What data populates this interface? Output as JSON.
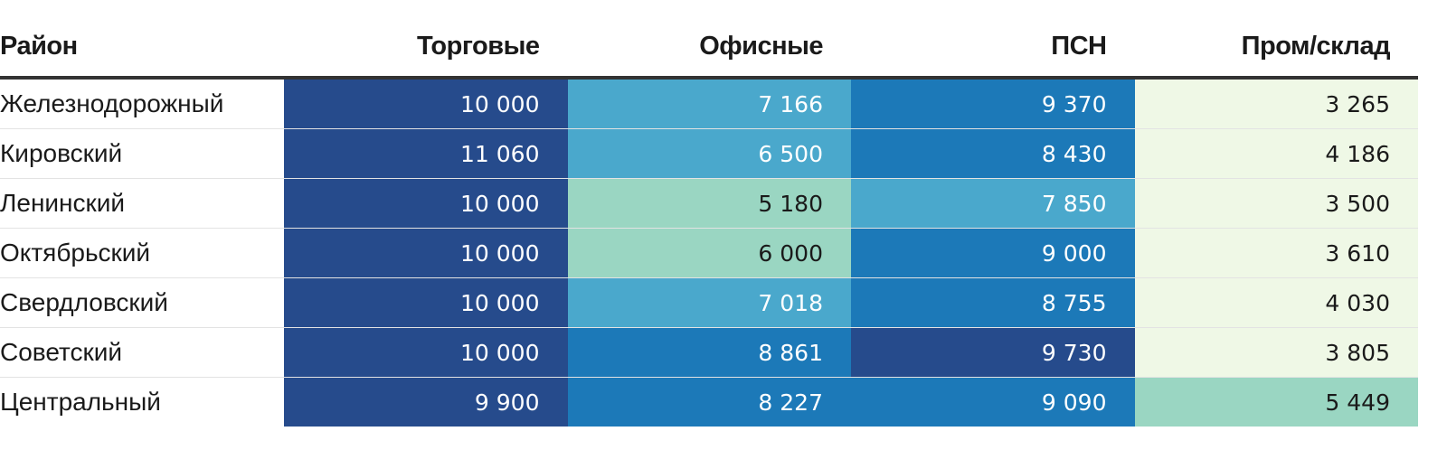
{
  "chart_data": {
    "type": "heatmap",
    "columns": [
      "Район",
      "Торговые",
      "Офисные",
      "ПСН",
      "Пром/склад"
    ],
    "rows": [
      {
        "district": "Железнодорожный",
        "values": [
          "10 000",
          "7 166",
          "9 370",
          "3 265"
        ],
        "colors": [
          "#264b8c",
          "#4aa8cc",
          "#1c79b8",
          "#eff8e6"
        ]
      },
      {
        "district": "Кировский",
        "values": [
          "11 060",
          "6 500",
          "8 430",
          "4 186"
        ],
        "colors": [
          "#264b8c",
          "#4aa8cc",
          "#1c79b8",
          "#eff8e6"
        ]
      },
      {
        "district": "Ленинский",
        "values": [
          "10 000",
          "5 180",
          "7 850",
          "3 500"
        ],
        "colors": [
          "#264b8c",
          "#9ad6c2",
          "#4aa8cc",
          "#eff8e6"
        ]
      },
      {
        "district": "Октябрьский",
        "values": [
          "10 000",
          "6 000",
          "9 000",
          "3 610"
        ],
        "colors": [
          "#264b8c",
          "#9ad6c2",
          "#1c79b8",
          "#eff8e6"
        ]
      },
      {
        "district": "Свердловский",
        "values": [
          "10 000",
          "7 018",
          "8 755",
          "4 030"
        ],
        "colors": [
          "#264b8c",
          "#4aa8cc",
          "#1c79b8",
          "#eff8e6"
        ]
      },
      {
        "district": "Советский",
        "values": [
          "10 000",
          "8 861",
          "9 730",
          "3 805"
        ],
        "colors": [
          "#264b8c",
          "#1c79b8",
          "#264b8c",
          "#eff8e6"
        ]
      },
      {
        "district": "Центральный",
        "values": [
          "9 900",
          "8 227",
          "9 090",
          "5 449"
        ],
        "colors": [
          "#264b8c",
          "#1c79b8",
          "#1c79b8",
          "#9ad6c2"
        ]
      }
    ],
    "text_colors": {
      "dark_bg": "#ffffff",
      "light_bg": "#1a1a1a"
    }
  }
}
